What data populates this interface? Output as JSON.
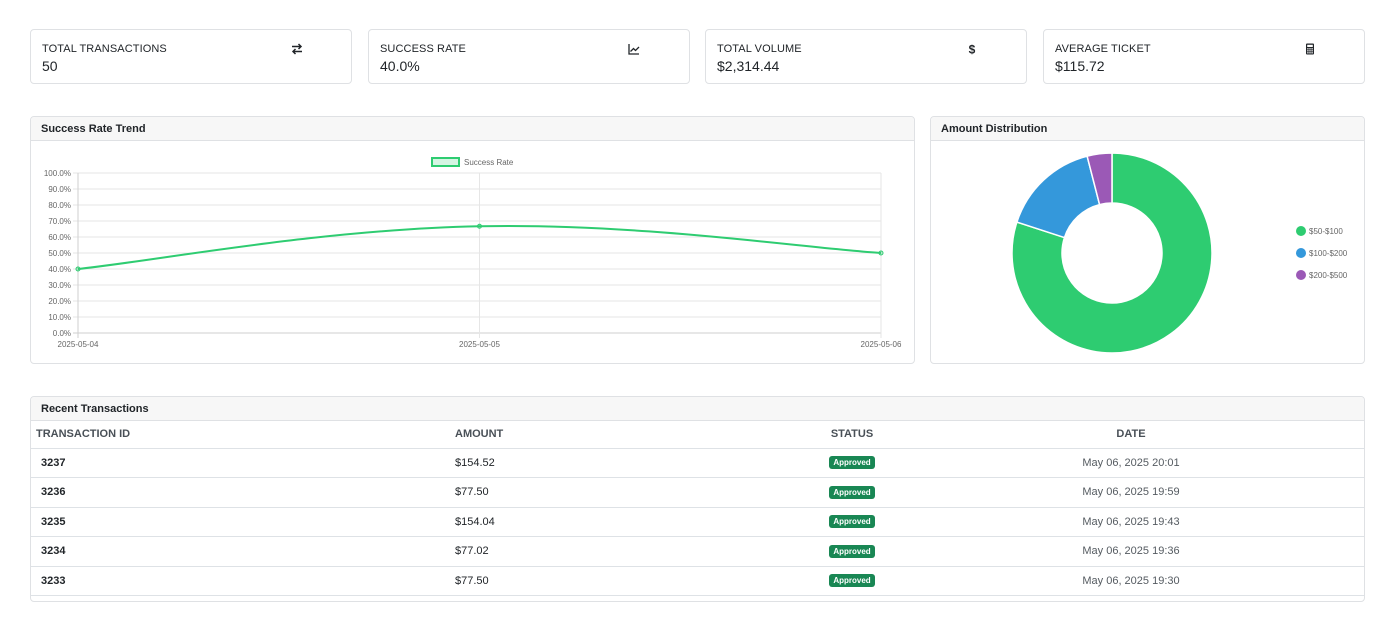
{
  "stats": [
    {
      "label": "TOTAL TRANSACTIONS",
      "value": "50",
      "icon": "exchange-arrows-icon"
    },
    {
      "label": "SUCCESS RATE",
      "value": "40.0%",
      "icon": "line-chart-icon"
    },
    {
      "label": "TOTAL VOLUME",
      "value": "$2,314.44",
      "icon": "dollar-icon"
    },
    {
      "label": "AVERAGE TICKET",
      "value": "$115.72",
      "icon": "calculator-icon"
    }
  ],
  "trend": {
    "title": "Success Rate Trend"
  },
  "distribution": {
    "title": "Amount Distribution"
  },
  "transactions": {
    "title": "Recent Transactions",
    "columns": {
      "id": "TRANSACTION ID",
      "amount": "AMOUNT",
      "status": "STATUS",
      "date": "DATE"
    },
    "rows": [
      {
        "id": "3237",
        "amount": "$154.52",
        "status": "Approved",
        "date": "May 06, 2025 20:01"
      },
      {
        "id": "3236",
        "amount": "$77.50",
        "status": "Approved",
        "date": "May 06, 2025 19:59"
      },
      {
        "id": "3235",
        "amount": "$154.04",
        "status": "Approved",
        "date": "May 06, 2025 19:43"
      },
      {
        "id": "3234",
        "amount": "$77.02",
        "status": "Approved",
        "date": "May 06, 2025 19:36"
      },
      {
        "id": "3233",
        "amount": "$77.50",
        "status": "Approved",
        "date": "May 06, 2025 19:30"
      }
    ]
  },
  "chart_data": [
    {
      "type": "line",
      "title": "",
      "x": [
        "2025-05-04",
        "2025-05-05",
        "2025-05-06"
      ],
      "series": [
        {
          "name": "Success Rate",
          "values": [
            40.0,
            66.7,
            50.0
          ],
          "color": "#2ecc71"
        }
      ],
      "ylim": [
        0,
        100
      ],
      "yticks": [
        "0.0%",
        "10.0%",
        "20.0%",
        "30.0%",
        "40.0%",
        "50.0%",
        "60.0%",
        "70.0%",
        "80.0%",
        "90.0%",
        "100.0%"
      ],
      "grid": true,
      "legend": "top-center"
    },
    {
      "type": "pie",
      "donut": true,
      "categories": [
        "$50-$100",
        "$100-$200",
        "$200-$500"
      ],
      "values": [
        40,
        8,
        2
      ],
      "colors": [
        "#2ecc71",
        "#3498db",
        "#9b59b6"
      ],
      "legend": "right"
    }
  ]
}
